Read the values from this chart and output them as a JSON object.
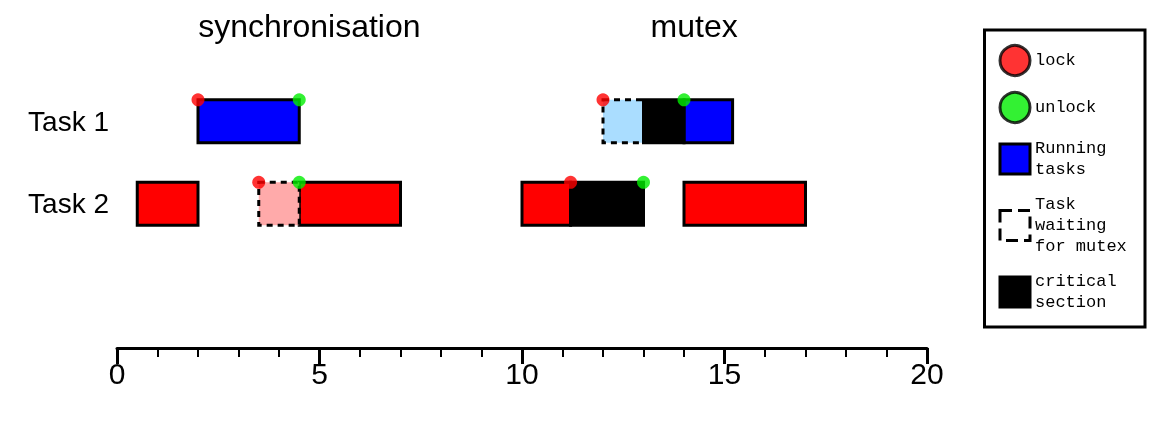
{
  "chart_data": {
    "type": "bar",
    "orientation": "horizontal",
    "categories": [
      "Task 1",
      "Task 2"
    ],
    "annotations": [
      "synchronisation",
      "mutex"
    ],
    "series": [
      {
        "name": "lock",
        "type": "scatter",
        "marker": "circle",
        "color": "#ff0000",
        "x": [
          "Task 1",
          "Task 1",
          "Task 2",
          "Task 2"
        ],
        "values": [
          2,
          12,
          3.5,
          11.2
        ]
      },
      {
        "name": "unlock",
        "type": "scatter",
        "marker": "circle",
        "color": "#00ee00",
        "x": [
          "Task 1",
          "Task 1",
          "Task 2",
          "Task 2"
        ],
        "values": [
          4.5,
          14,
          4.5,
          13
        ]
      },
      {
        "name": "Running tasks",
        "colors": [
          "#0000ff",
          "#ff0000"
        ],
        "base": [
          2,
          0.5
        ],
        "values": [
          2.5,
          1.5
        ]
      },
      {
        "colors": [
          "#0000ff",
          "#ff0000"
        ],
        "base": [
          14,
          4.5
        ],
        "values": [
          1.2,
          2.5
        ]
      },
      {
        "color": "#ff0000",
        "base": [
          null,
          10
        ],
        "values": [
          null,
          1.2
        ]
      },
      {
        "color": "#ff0000",
        "base": [
          null,
          14
        ],
        "values": [
          null,
          3
        ]
      },
      {
        "name": "Task waiting for mutex",
        "colors": [
          "#aaddff",
          "#ffaaaa"
        ],
        "line_style": "dashed",
        "base": [
          12,
          3.5
        ],
        "values": [
          1,
          1
        ]
      },
      {
        "name": "critical section",
        "color": "#000000",
        "base": [
          13,
          11.2
        ],
        "values": [
          1,
          1.8
        ]
      }
    ],
    "xlim": [
      0,
      20
    ],
    "xticks": [
      0,
      5,
      10,
      15,
      20
    ],
    "legend": "right"
  }
}
